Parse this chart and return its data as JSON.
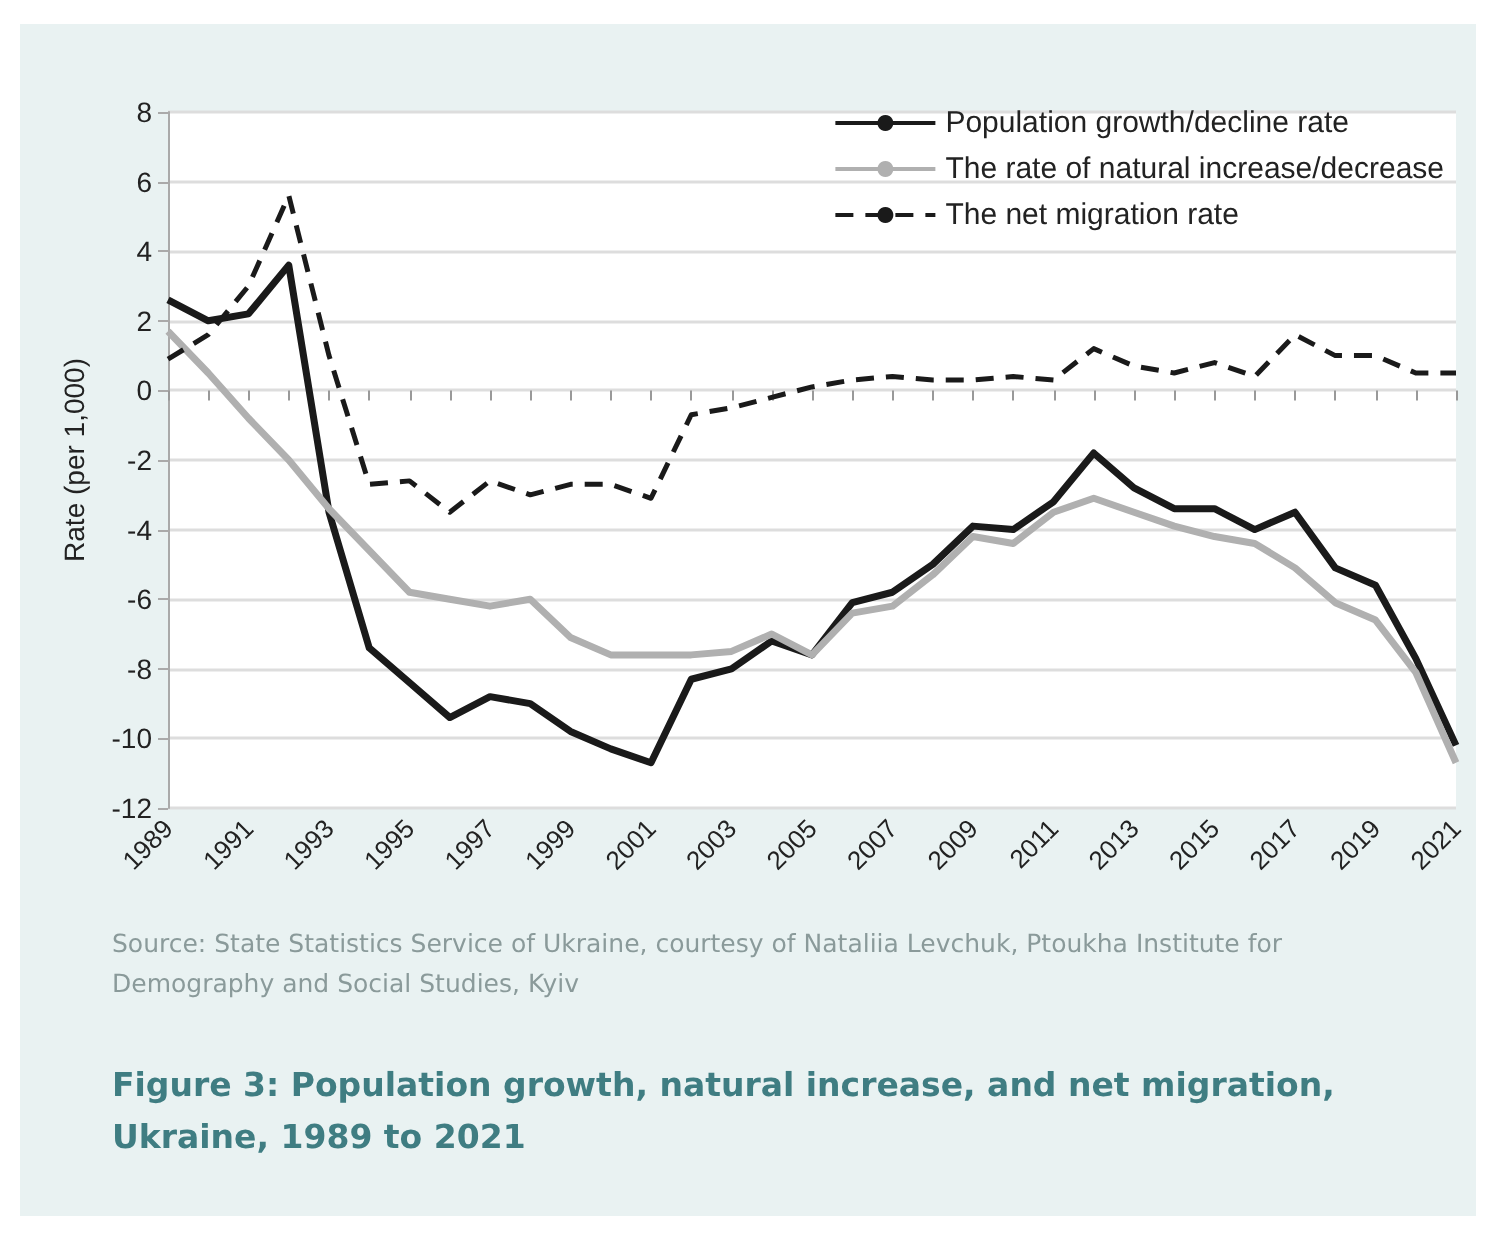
{
  "chart_data": {
    "type": "line",
    "title": "Figure 3: Population growth, natural increase, and net migration, Ukraine, 1989 to 2021",
    "ylabel": "Rate (per 1,000)",
    "annotations": [
      "Source: State Statistics Service of Ukraine, courtesy of Nataliia Levchuk, Ptoukha Institute for Demography and Social Studies, Kyiv"
    ],
    "categories": [
      "1989",
      null,
      "1991",
      null,
      "1993",
      null,
      "1995",
      null,
      "1997",
      null,
      "1999",
      null,
      "2001",
      null,
      "2003",
      null,
      "2005",
      null,
      "2007",
      null,
      "2009",
      null,
      "2011",
      null,
      "2013",
      null,
      "2015",
      null,
      "2017",
      null,
      "2019",
      null,
      "2021"
    ],
    "series": [
      {
        "name": "Population growth/decline rate",
        "color": "#1a1a1a",
        "line_style": "solid",
        "values": [
          2.6,
          2.0,
          2.2,
          3.6,
          -3.5,
          -7.4,
          -8.4,
          -9.4,
          -8.8,
          -9.0,
          -9.8,
          -10.3,
          -10.7,
          -8.3,
          -8.0,
          -7.2,
          -7.6,
          -6.1,
          -5.8,
          -5.0,
          -3.9,
          -4.0,
          -3.2,
          -1.8,
          -2.8,
          -3.4,
          -3.4,
          -4.0,
          -3.5,
          -5.1,
          -5.6,
          -7.7,
          -10.2
        ]
      },
      {
        "name": "The rate of natural increase/decrease",
        "color": "#b0b0b0",
        "line_style": "solid",
        "values": [
          1.7,
          0.5,
          -0.8,
          -2.0,
          -3.4,
          -4.6,
          -5.8,
          -6.0,
          -6.2,
          -6.0,
          -7.1,
          -7.6,
          -7.6,
          -7.6,
          -7.5,
          -7.0,
          -7.6,
          -6.4,
          -6.2,
          -5.3,
          -4.2,
          -4.4,
          -3.5,
          -3.1,
          -3.5,
          -3.9,
          -4.2,
          -4.4,
          -5.1,
          -6.1,
          -6.6,
          -8.1,
          -10.7
        ]
      },
      {
        "name": "The net migration rate",
        "color": "#1a1a1a",
        "line_style": "dashed",
        "values": [
          0.9,
          1.6,
          3.0,
          5.6,
          1.0,
          -2.7,
          -2.6,
          -3.5,
          -2.6,
          -3.0,
          -2.7,
          -2.7,
          -3.1,
          -0.7,
          -0.5,
          -0.2,
          0.1,
          0.3,
          0.4,
          0.3,
          0.3,
          0.4,
          0.3,
          1.2,
          0.7,
          0.5,
          0.8,
          0.4,
          1.6,
          1.0,
          1.0,
          0.5,
          0.5
        ]
      }
    ],
    "ylim": [
      -12,
      8
    ],
    "yticks": [
      -12,
      -10,
      -8,
      -6,
      -4,
      -2,
      0,
      2,
      4,
      6,
      8
    ],
    "grid": "y",
    "legend": "top right",
    "marker": "none"
  }
}
